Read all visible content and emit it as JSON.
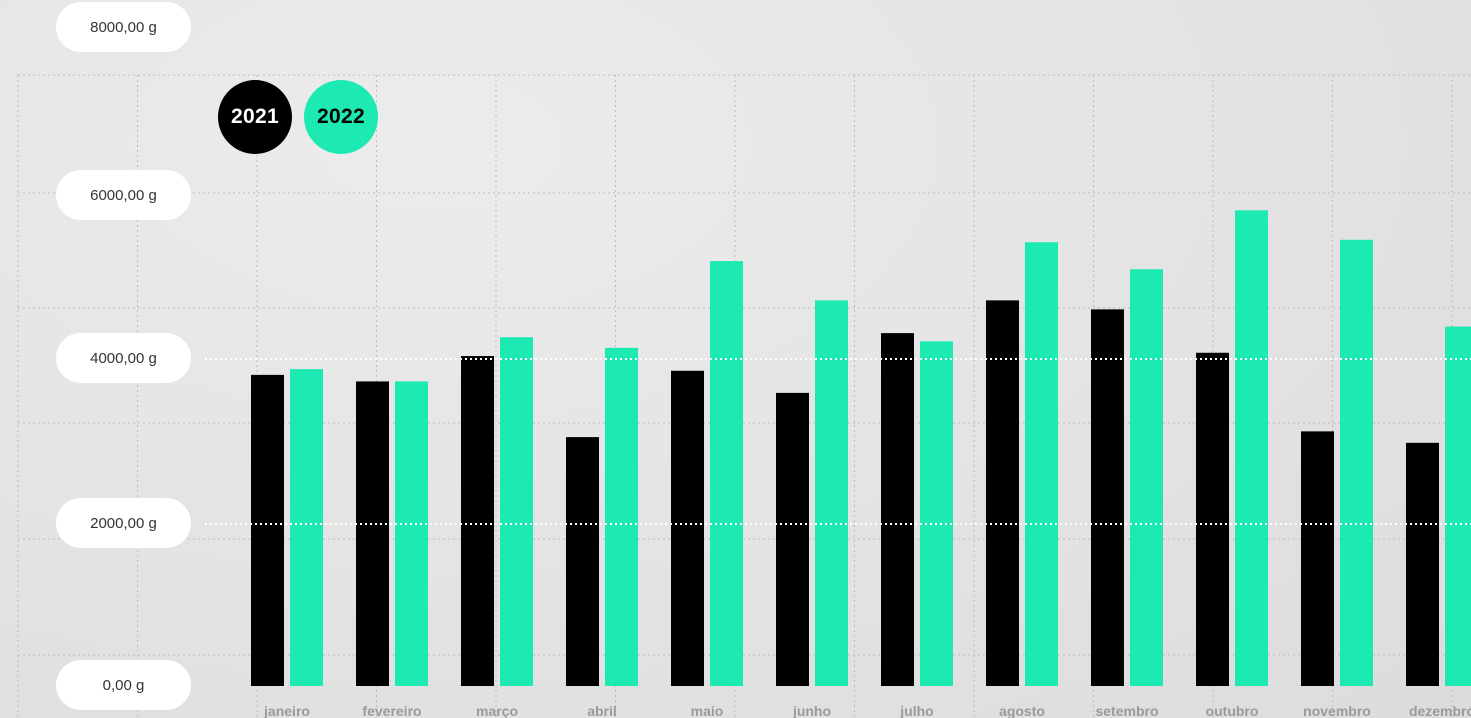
{
  "chart_data": {
    "type": "bar",
    "title": "",
    "xlabel": "",
    "ylabel": "",
    "ylim": [
      0,
      8000
    ],
    "y_ticks": [
      "0,00 g",
      "2000,00 g",
      "4000,00 g",
      "6000,00 g",
      "8000,00 g"
    ],
    "y_tick_values": [
      0,
      2000,
      4000,
      6000,
      8000
    ],
    "categories": [
      "janeiro",
      "fevereiro",
      "março",
      "abril",
      "maio",
      "junho",
      "julho",
      "agosto",
      "setembro",
      "outubro",
      "novembro",
      "dezembro"
    ],
    "series": [
      {
        "name": "2021",
        "color": "#000000",
        "values": [
          3800,
          3720,
          4030,
          3040,
          3850,
          3580,
          4310,
          4710,
          4600,
          4070,
          3110,
          2970
        ]
      },
      {
        "name": "2022",
        "color": "#1de9b3",
        "values": [
          3870,
          3720,
          4260,
          4130,
          5190,
          4710,
          4210,
          5420,
          5090,
          5810,
          5450,
          4390
        ]
      }
    ],
    "legend": "top-left",
    "grid": true
  }
}
